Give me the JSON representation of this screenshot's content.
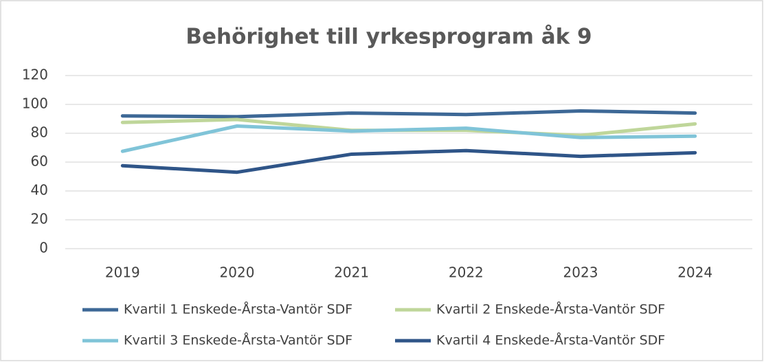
{
  "chart_data": {
    "type": "line",
    "title": "Behörighet till yrkesprogram åk 9",
    "categories": [
      "2019",
      "2020",
      "2021",
      "2022",
      "2023",
      "2024"
    ],
    "series": [
      {
        "name": "Kvartil 1 Enskede-Årsta-Vantör SDF",
        "color": "#3d6896",
        "values": [
          92,
          91.5,
          94,
          93,
          95.5,
          94
        ]
      },
      {
        "name": "Kvartil 2 Enskede-Årsta-Vantör SDF",
        "color": "#bfd69a",
        "values": [
          87.5,
          89.5,
          82,
          82,
          78.5,
          86.5
        ]
      },
      {
        "name": "Kvartil 3 Enskede-Årsta-Vantör SDF",
        "color": "#80c4d8",
        "values": [
          67.5,
          85,
          81.5,
          83.5,
          77,
          78
        ]
      },
      {
        "name": "Kvartil 4 Enskede-Årsta-Vantör SDF",
        "color": "#2f5588",
        "values": [
          57.5,
          53,
          65.5,
          68,
          64,
          66.5
        ]
      }
    ],
    "ylim": [
      0,
      120
    ],
    "yticks": [
      0,
      20,
      40,
      60,
      80,
      100,
      120
    ],
    "grid": true
  }
}
